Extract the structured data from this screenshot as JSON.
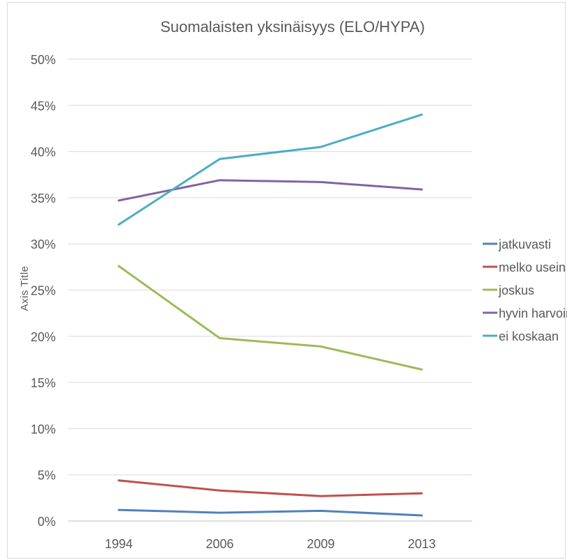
{
  "chart_data": {
    "type": "line",
    "title": "Suomalaisten yksinäisyys (ELO/HYPA)",
    "xlabel": "",
    "ylabel": "Axis Title",
    "categories": [
      "1994",
      "2006",
      "2009",
      "2013"
    ],
    "ylim": [
      0,
      0.5
    ],
    "yticks": [
      {
        "value": 0,
        "label": "0%"
      },
      {
        "value": 0.05,
        "label": "5%"
      },
      {
        "value": 0.1,
        "label": "10%"
      },
      {
        "value": 0.15,
        "label": "15%"
      },
      {
        "value": 0.2,
        "label": "20%"
      },
      {
        "value": 0.25,
        "label": "25%"
      },
      {
        "value": 0.3,
        "label": "30%"
      },
      {
        "value": 0.35,
        "label": "35%"
      },
      {
        "value": 0.4,
        "label": "40%"
      },
      {
        "value": 0.45,
        "label": "45%"
      },
      {
        "value": 0.5,
        "label": "50%"
      }
    ],
    "grid": true,
    "legend_position": "right",
    "series": [
      {
        "name": "jatkuvasti",
        "color": "#4f81bd",
        "values": [
          0.012,
          0.009,
          0.011,
          0.006
        ]
      },
      {
        "name": "melko usein",
        "color": "#c0504d",
        "values": [
          0.044,
          0.033,
          0.027,
          0.03
        ]
      },
      {
        "name": "joskus",
        "color": "#9bbb59",
        "values": [
          0.276,
          0.198,
          0.189,
          0.164
        ]
      },
      {
        "name": "hyvin harvoin",
        "color": "#8064a2",
        "values": [
          0.347,
          0.369,
          0.367,
          0.359
        ]
      },
      {
        "name": "ei koskaan",
        "color": "#4bacc6",
        "values": [
          0.321,
          0.392,
          0.405,
          0.44
        ]
      }
    ]
  }
}
